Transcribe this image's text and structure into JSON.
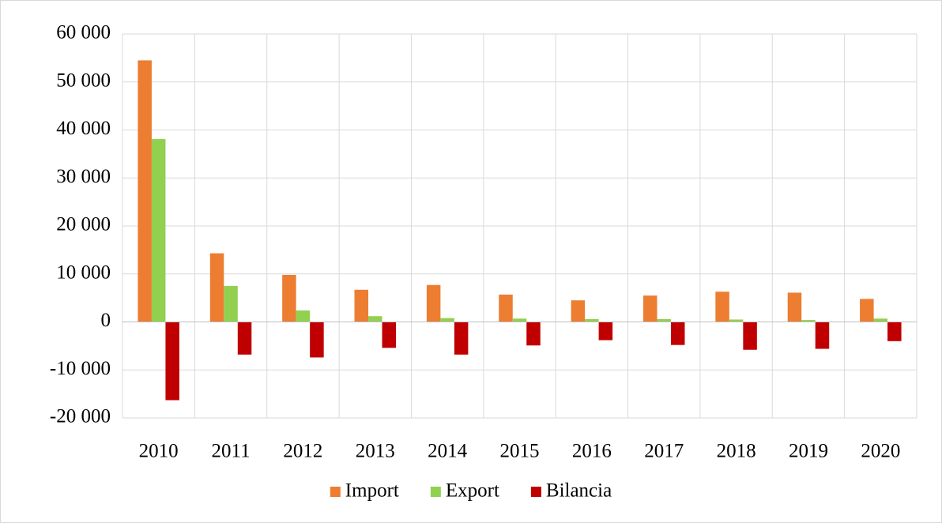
{
  "chart_data": {
    "type": "bar",
    "categories": [
      "2010",
      "2011",
      "2012",
      "2013",
      "2014",
      "2015",
      "2016",
      "2017",
      "2018",
      "2019",
      "2020"
    ],
    "series": [
      {
        "name": "Import",
        "color": "#ed7d31",
        "values": [
          54500,
          14300,
          9800,
          6700,
          7700,
          5700,
          4500,
          5500,
          6300,
          6100,
          4800
        ]
      },
      {
        "name": "Export",
        "color": "#92d050",
        "values": [
          38100,
          7500,
          2400,
          1200,
          800,
          700,
          600,
          600,
          500,
          400,
          700
        ]
      },
      {
        "name": "Bilancia",
        "color": "#c00000",
        "values": [
          -16300,
          -6800,
          -7400,
          -5400,
          -6800,
          -4900,
          -3800,
          -4800,
          -5800,
          -5600,
          -4000
        ]
      }
    ],
    "ylim": [
      -20000,
      60000
    ],
    "yticks": [
      {
        "value": -20000,
        "label": "-20 000"
      },
      {
        "value": -10000,
        "label": "-10 000"
      },
      0,
      {
        "value": 10000,
        "label": "10 000"
      },
      {
        "value": 20000,
        "label": "20 000"
      },
      {
        "value": 30000,
        "label": "30 000"
      },
      {
        "value": 40000,
        "label": "40 000"
      },
      {
        "value": 50000,
        "label": "50 000"
      },
      {
        "value": 60000,
        "label": "60 000"
      }
    ],
    "grid": true,
    "legend": "bottom"
  }
}
